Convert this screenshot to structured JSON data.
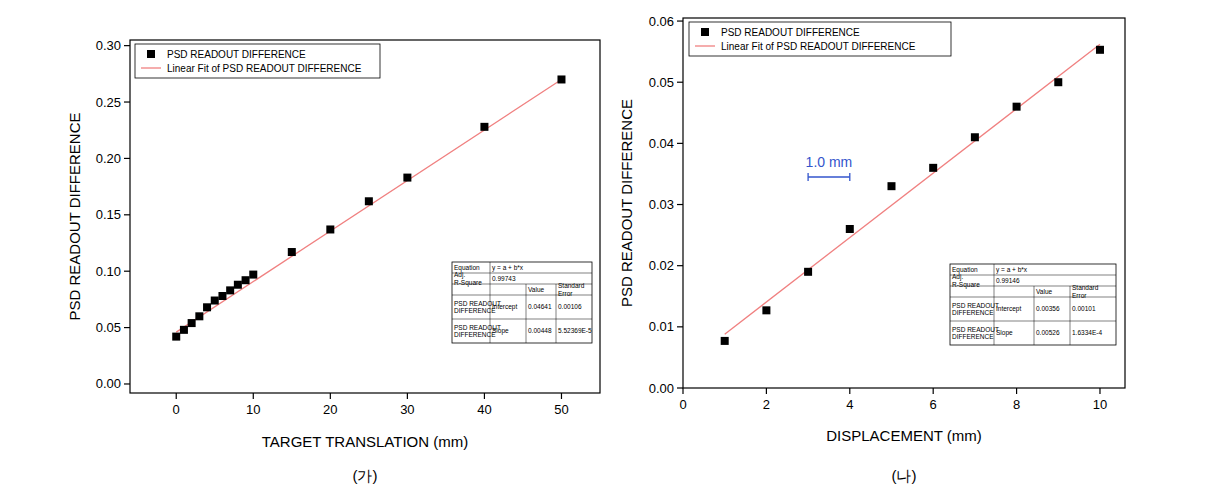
{
  "chart_data": [
    {
      "type": "scatter",
      "caption": "(가)",
      "x_label": "TARGET TRANSLATION (mm)",
      "y_label": "PSD READOUT DIFFERENCE",
      "legend": "upper left",
      "grid": false,
      "xlim": [
        -6,
        55
      ],
      "ylim": [
        -0.008,
        0.305
      ],
      "xticks": [
        0,
        10,
        20,
        30,
        40,
        50
      ],
      "yticks": [
        {
          "value": 0,
          "label": "0.00"
        },
        {
          "value": 0.05,
          "label": "0.05"
        },
        {
          "value": 0.1,
          "label": "0.10"
        },
        {
          "value": 0.15,
          "label": "0.15"
        },
        {
          "value": 0.2,
          "label": "0.20"
        },
        {
          "value": 0.25,
          "label": "0.25"
        },
        {
          "value": 0.3,
          "label": "0.30"
        }
      ],
      "series": [
        {
          "name": "PSD READOUT DIFFERENCE",
          "type": "scatter",
          "marker": "square",
          "color": "#000000",
          "x": [
            0,
            1,
            2,
            3,
            4,
            5,
            6,
            7,
            8,
            9,
            10,
            15,
            20,
            25,
            30,
            40,
            50
          ],
          "values": [
            0.042,
            0.048,
            0.054,
            0.06,
            0.068,
            0.074,
            0.078,
            0.083,
            0.088,
            0.092,
            0.097,
            0.117,
            0.137,
            0.162,
            0.183,
            0.228,
            0.27
          ]
        },
        {
          "name": "Linear Fit of PSD READOUT DIFFERENCE",
          "type": "line",
          "line_style": "solid",
          "color": "#f08080",
          "x": [
            0,
            50
          ],
          "values": [
            0.046,
            0.27
          ]
        }
      ],
      "fit_table": {
        "top_rows": [
          [
            "Equation",
            "y = a + b*x"
          ],
          [
            "Adj. R-Square",
            "0.99743"
          ]
        ],
        "header": [
          "Value",
          "Standard Error"
        ],
        "body": [
          [
            "PSD READOUT DIFFERENCE",
            "Intercept",
            "0.04641",
            "0.00106"
          ],
          [
            "PSD READOUT DIFFERENCE",
            "Slope",
            "0.00448",
            "5.52369E-5"
          ]
        ]
      }
    },
    {
      "type": "scatter",
      "caption": "(나)",
      "x_label": "DISPLACEMENT (mm)",
      "y_label": "PSD READOUT DIFFERENCE",
      "legend": "upper left",
      "grid": false,
      "xlim": [
        0,
        10.6
      ],
      "ylim": [
        0,
        0.0605
      ],
      "xticks": [
        0,
        2,
        4,
        6,
        8,
        10
      ],
      "yticks": [
        {
          "value": 0,
          "label": "0.00"
        },
        {
          "value": 0.01,
          "label": "0.01"
        },
        {
          "value": 0.02,
          "label": "0.02"
        },
        {
          "value": 0.03,
          "label": "0.03"
        },
        {
          "value": 0.04,
          "label": "0.04"
        },
        {
          "value": 0.05,
          "label": "0.05"
        },
        {
          "value": 0.06,
          "label": "0.06"
        }
      ],
      "series": [
        {
          "name": "PSD READOUT DIFFERENCE",
          "type": "scatter",
          "marker": "square",
          "color": "#000000",
          "x": [
            1,
            2,
            3,
            4,
            5,
            6,
            7,
            8,
            9,
            10
          ],
          "values": [
            0.0077,
            0.0127,
            0.019,
            0.026,
            0.033,
            0.036,
            0.041,
            0.046,
            0.05,
            0.0553
          ]
        },
        {
          "name": "Linear Fit of PSD READOUT DIFFERENCE",
          "type": "line",
          "line_style": "solid",
          "color": "#f08080",
          "x": [
            1,
            10
          ],
          "values": [
            0.0088,
            0.0562
          ]
        }
      ],
      "scale_bar": {
        "label": "1.0 mm",
        "color": "#3355cc",
        "x": [
          3,
          4
        ],
        "y": 0.0345
      },
      "fit_table": {
        "top_rows": [
          [
            "Equation",
            "y = a + b*x"
          ],
          [
            "Adj. R-Square",
            "0.99146"
          ]
        ],
        "header": [
          "Value",
          "Standard Error"
        ],
        "body": [
          [
            "PSD READOUT DIFFERENCE",
            "Intercept",
            "0.00356",
            "0.00101"
          ],
          [
            "PSD READOUT DIFFERENCE",
            "Slope",
            "0.00526",
            "1.6334E-4"
          ]
        ]
      }
    }
  ]
}
